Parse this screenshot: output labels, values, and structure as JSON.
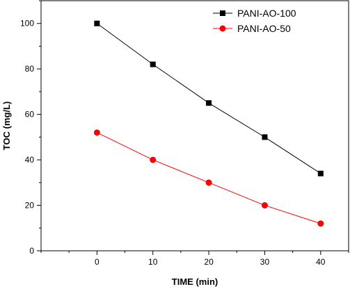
{
  "chart_data": {
    "type": "line",
    "xlabel": "TIME (min)",
    "ylabel": "TOC (mg/L)",
    "xlim": [
      -10,
      45
    ],
    "ylim": [
      0,
      110
    ],
    "x_ticks": [
      0,
      10,
      20,
      30,
      40
    ],
    "y_ticks": [
      0,
      20,
      40,
      60,
      80,
      100
    ],
    "grid": false,
    "legend_position": "top-right",
    "series": [
      {
        "name": "PANI-AO-100",
        "color": "#000000",
        "marker": "square",
        "x": [
          0,
          10,
          20,
          30,
          40
        ],
        "y": [
          100,
          82,
          65,
          50,
          34
        ]
      },
      {
        "name": "PANI-AO-50",
        "color": "#ff0000",
        "marker": "circle",
        "x": [
          0,
          10,
          20,
          30,
          40
        ],
        "y": [
          52,
          40,
          30,
          20,
          12
        ]
      }
    ]
  }
}
